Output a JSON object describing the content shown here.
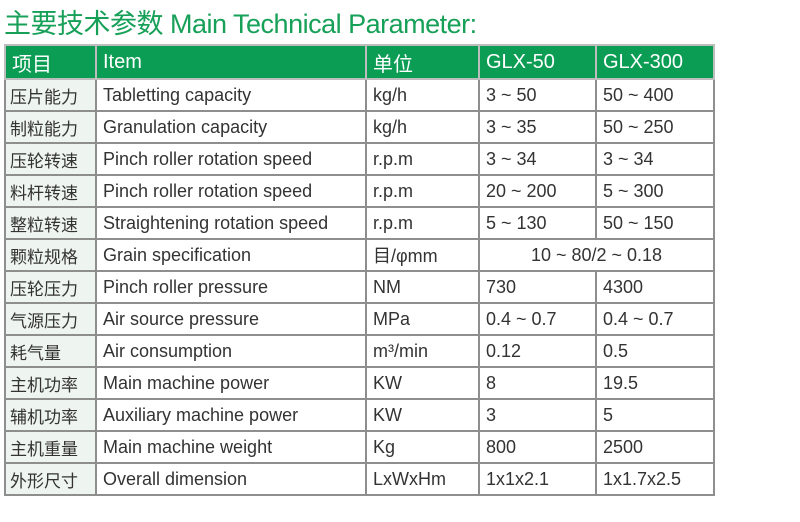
{
  "title": "主要技术参数 Main Technical Parameter:",
  "header": [
    "项目",
    "Item",
    "单位",
    "GLX-50",
    "GLX-300"
  ],
  "rows": [
    [
      "压片能力",
      "Tabletting capacity",
      "kg/h",
      "3 ~ 50",
      "50 ~ 400"
    ],
    [
      "制粒能力",
      "Granulation capacity",
      "kg/h",
      "3 ~ 35",
      "50 ~ 250"
    ],
    [
      "压轮转速",
      "Pinch roller rotation speed",
      "r.p.m",
      "3 ~ 34",
      "3 ~ 34"
    ],
    [
      "料杆转速",
      "Pinch roller rotation speed",
      "r.p.m",
      "20 ~ 200",
      "5 ~ 300"
    ],
    [
      "整粒转速",
      "Straightening rotation speed",
      "r.p.m",
      "5 ~ 130",
      "50 ~ 150"
    ],
    [
      "颗粒规格",
      "Grain specification",
      "目/φmm",
      "10 ~ 80/2 ~ 0.18"
    ],
    [
      "压轮压力",
      "Pinch roller pressure",
      "NM",
      "730",
      "4300"
    ],
    [
      "气源压力",
      "Air source pressure",
      "MPa",
      "0.4 ~ 0.7",
      "0.4 ~ 0.7"
    ],
    [
      "耗气量",
      "Air consumption",
      "m³/min",
      "0.12",
      "0.5"
    ],
    [
      "主机功率",
      "Main machine power",
      "KW",
      "8",
      "19.5"
    ],
    [
      "辅机功率",
      "Auxiliary machine power",
      "KW",
      "3",
      "5"
    ],
    [
      "主机重量",
      "Main machine weight",
      "Kg",
      "800",
      "2500"
    ],
    [
      "外形尺寸",
      "Overall dimension",
      "LxWxHm",
      "1x1x2.1",
      "1x1.7x2.5"
    ]
  ],
  "colors": {
    "header_bg": "#0c9d55",
    "title": "#17a058",
    "first_col_bg": "#eef4ef"
  }
}
